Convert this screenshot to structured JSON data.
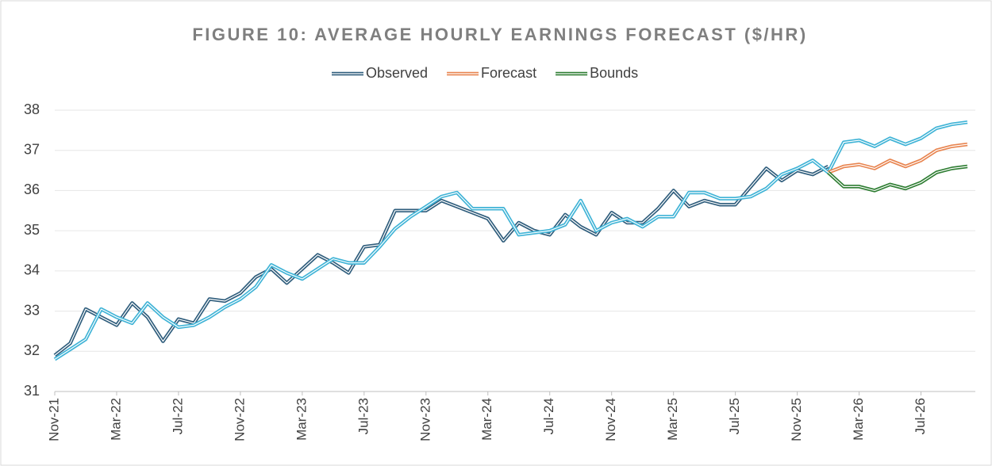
{
  "chart_data": {
    "type": "line",
    "title": "FIGURE 10: AVERAGE HOURLY EARNINGS FORECAST ($/HR)",
    "categories": [
      "Nov-21",
      null,
      null,
      null,
      "Mar-22",
      null,
      null,
      null,
      "Jul-22",
      null,
      null,
      null,
      "Nov-22",
      null,
      null,
      null,
      "Mar-23",
      null,
      null,
      null,
      "Jul-23",
      null,
      null,
      null,
      "Nov-23",
      null,
      null,
      null,
      "Mar-24",
      null,
      null,
      null,
      "Jul-24",
      null,
      null,
      null,
      "Nov-24",
      null,
      null,
      null,
      "Mar-25",
      null,
      null,
      null,
      "Jul-25",
      null,
      null,
      null,
      "Nov-25",
      null,
      null,
      null,
      "Mar-26",
      null,
      null,
      null,
      "Jul-26",
      null,
      null,
      null
    ],
    "series": [
      {
        "name": "Observed",
        "color": "#2f5d7c",
        "values": [
          31.9,
          32.2,
          33.05,
          32.85,
          32.65,
          33.2,
          32.85,
          32.25,
          32.8,
          32.7,
          33.3,
          33.25,
          33.45,
          33.85,
          34.05,
          33.7,
          34.05,
          34.4,
          34.2,
          33.95,
          34.6,
          34.65,
          35.5,
          35.5,
          35.5,
          35.75,
          35.6,
          35.45,
          35.3,
          34.75,
          35.2,
          35.0,
          34.9,
          35.4,
          35.1,
          34.9,
          35.45,
          35.2,
          35.2,
          35.55,
          36.0,
          35.6,
          35.75,
          35.65,
          35.65,
          36.1,
          36.55,
          36.25,
          36.5,
          36.4,
          36.6,
          null,
          null,
          null,
          null,
          null,
          null,
          null,
          null,
          null
        ]
      },
      {
        "color": "#3fb3d6",
        "values": [
          31.8,
          32.05,
          32.3,
          33.05,
          32.85,
          32.7,
          33.2,
          32.85,
          32.6,
          32.65,
          32.85,
          33.1,
          33.3,
          33.6,
          34.15,
          33.95,
          33.8,
          34.05,
          34.3,
          34.2,
          34.2,
          34.6,
          35.05,
          35.35,
          35.6,
          35.85,
          35.95,
          35.55,
          35.55,
          35.55,
          34.9,
          34.95,
          35.0,
          35.15,
          35.75,
          35.0,
          35.2,
          35.3,
          35.1,
          35.35,
          35.35,
          35.95,
          35.95,
          35.8,
          35.8,
          35.85,
          36.05,
          36.4,
          36.55,
          36.75,
          36.45,
          37.2,
          37.25,
          37.1,
          37.3,
          37.15,
          37.3,
          37.55,
          37.65,
          37.7
        ]
      },
      {
        "name": "Forecast",
        "color": "#e8844f",
        "values": [
          null,
          null,
          null,
          null,
          null,
          null,
          null,
          null,
          null,
          null,
          null,
          null,
          null,
          null,
          null,
          null,
          null,
          null,
          null,
          null,
          null,
          null,
          null,
          null,
          null,
          null,
          null,
          null,
          null,
          null,
          null,
          null,
          null,
          null,
          null,
          null,
          null,
          null,
          null,
          null,
          null,
          null,
          null,
          null,
          null,
          null,
          null,
          null,
          null,
          null,
          36.45,
          36.6,
          36.65,
          36.55,
          36.75,
          36.6,
          36.75,
          37.0,
          37.1,
          37.15
        ]
      },
      {
        "name": "Bounds",
        "color": "#2e7d32",
        "values": [
          null,
          null,
          null,
          null,
          null,
          null,
          null,
          null,
          null,
          null,
          null,
          null,
          null,
          null,
          null,
          null,
          null,
          null,
          null,
          null,
          null,
          null,
          null,
          null,
          null,
          null,
          null,
          null,
          null,
          null,
          null,
          null,
          null,
          null,
          null,
          null,
          null,
          null,
          null,
          null,
          null,
          null,
          null,
          null,
          null,
          null,
          null,
          null,
          null,
          null,
          36.45,
          36.1,
          36.1,
          36.0,
          36.15,
          36.05,
          36.2,
          36.45,
          36.55,
          36.6
        ]
      }
    ],
    "ylim": [
      31,
      38
    ],
    "yticks": [
      31,
      32,
      33,
      34,
      35,
      36,
      37,
      38
    ],
    "grid": true,
    "legend": "top"
  }
}
